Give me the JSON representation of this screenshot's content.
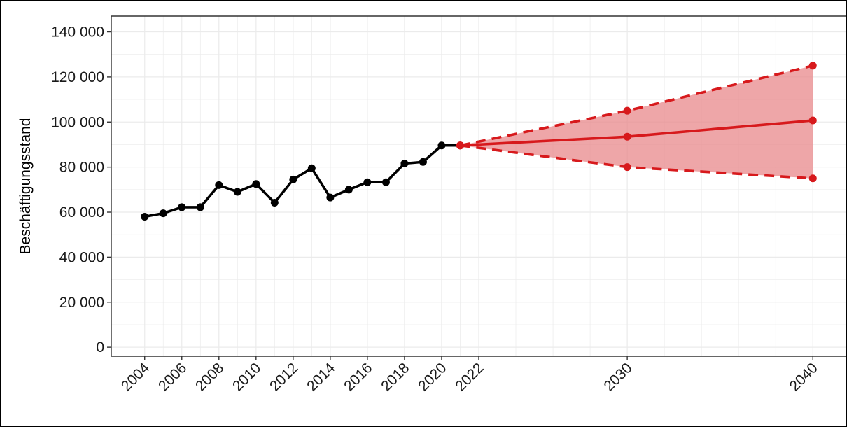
{
  "chart_data": {
    "type": "line",
    "title": "",
    "xlabel": "",
    "ylabel": "Beschäftigungsstand",
    "xlim": [
      2002.2,
      2041.8
    ],
    "ylim": [
      -4000,
      147000
    ],
    "grid": true,
    "legend": "none",
    "x_ticks": [
      {
        "value": 2004,
        "label": "2004"
      },
      {
        "value": 2006,
        "label": "2006"
      },
      {
        "value": 2008,
        "label": "2008"
      },
      {
        "value": 2010,
        "label": "2010"
      },
      {
        "value": 2012,
        "label": "2012"
      },
      {
        "value": 2014,
        "label": "2014"
      },
      {
        "value": 2016,
        "label": "2016"
      },
      {
        "value": 2018,
        "label": "2018"
      },
      {
        "value": 2020,
        "label": "2020"
      },
      {
        "value": 2022,
        "label": "2022"
      },
      {
        "value": 2030,
        "label": "2030"
      },
      {
        "value": 2040,
        "label": "2040"
      }
    ],
    "y_ticks": [
      {
        "value": 0,
        "label": "0"
      },
      {
        "value": 20000,
        "label": "20 000"
      },
      {
        "value": 40000,
        "label": "40 000"
      },
      {
        "value": 60000,
        "label": "60 000"
      },
      {
        "value": 80000,
        "label": "80 000"
      },
      {
        "value": 100000,
        "label": "100 000"
      },
      {
        "value": 120000,
        "label": "120 000"
      },
      {
        "value": 140000,
        "label": "140 000"
      }
    ],
    "series": [
      {
        "role": "observed",
        "color": "#000000",
        "line": "solid",
        "x": [
          2004,
          2005,
          2006,
          2007,
          2008,
          2009,
          2010,
          2011,
          2012,
          2013,
          2014,
          2015,
          2016,
          2017,
          2018,
          2019,
          2020,
          2021
        ],
        "y": [
          58000,
          59500,
          62200,
          62200,
          72000,
          69000,
          72500,
          64200,
          74500,
          79500,
          66500,
          70000,
          73300,
          73300,
          81600,
          82300,
          89600,
          89600
        ]
      },
      {
        "role": "projection",
        "color": "#d7191c",
        "line": "solid",
        "x": [
          2021,
          2030,
          2040
        ],
        "y": [
          89600,
          93500,
          100700
        ]
      },
      {
        "role": "upper-bound",
        "color": "#d7191c",
        "line": "dashed",
        "x": [
          2021,
          2030,
          2040
        ],
        "y": [
          89600,
          105000,
          125000
        ]
      },
      {
        "role": "lower-bound",
        "color": "#d7191c",
        "line": "dashed",
        "x": [
          2021,
          2030,
          2040
        ],
        "y": [
          89600,
          80000,
          75000
        ]
      }
    ],
    "band": {
      "color": "#e8888b",
      "x": [
        2021,
        2030,
        2040
      ],
      "lower": [
        89600,
        80000,
        75000
      ],
      "upper": [
        89600,
        105000,
        125000
      ]
    },
    "colors": {
      "grid": "#ebebeb",
      "axis": "#333333",
      "observed": "#000000",
      "projection": "#d7191c",
      "band": "#e8888b"
    }
  }
}
